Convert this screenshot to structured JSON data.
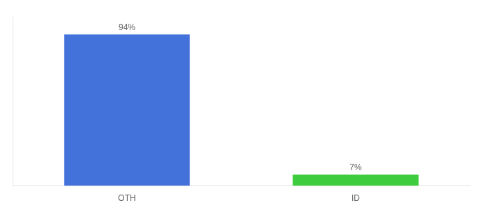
{
  "chart_data": {
    "type": "bar",
    "categories": [
      "OTH",
      "ID"
    ],
    "values": [
      94,
      7
    ],
    "value_labels": [
      "94%",
      "7%"
    ],
    "colors": [
      "#4472db",
      "#3dcc3d"
    ],
    "ylim": [
      0,
      105
    ],
    "grid": false,
    "data_labels": true,
    "tick_labels": "x"
  }
}
